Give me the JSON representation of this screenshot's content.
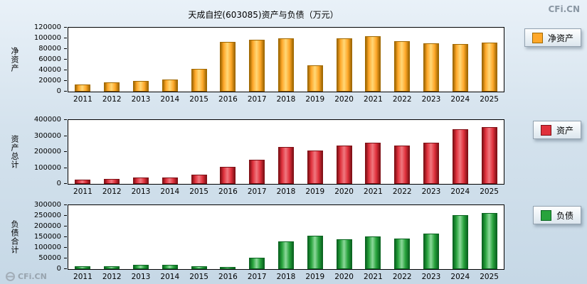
{
  "page": {
    "title": "天成自控(603085)资产与负债（万元）",
    "watermark_top": "CFi.CN",
    "watermark_bottom": "CFi.CN"
  },
  "chart_data": [
    {
      "type": "bar",
      "ylabel": "净资产",
      "legend": "净资产",
      "color": "#FFA82A",
      "color_light": "#FFD878",
      "color_dark": "#A06800",
      "ylim": [
        0,
        120000
      ],
      "yticks": [
        0,
        20000,
        40000,
        60000,
        80000,
        100000,
        120000
      ],
      "categories": [
        "2011",
        "2012",
        "2013",
        "2014",
        "2015",
        "2016",
        "2017",
        "2018",
        "2019",
        "2020",
        "2021",
        "2022",
        "2023",
        "2024",
        "2025"
      ],
      "values": [
        13000,
        18000,
        19500,
        23000,
        43000,
        94000,
        98000,
        100000,
        50000,
        100000,
        104000,
        95000,
        91000,
        90000,
        92000
      ]
    },
    {
      "type": "bar",
      "ylabel": "资产总计",
      "legend": "资产",
      "color": "#E0313C",
      "color_light": "#F0787F",
      "color_dark": "#801016",
      "ylim": [
        0,
        400000
      ],
      "yticks": [
        0,
        100000,
        200000,
        300000,
        400000
      ],
      "categories": [
        "2011",
        "2012",
        "2013",
        "2014",
        "2015",
        "2016",
        "2017",
        "2018",
        "2019",
        "2020",
        "2021",
        "2022",
        "2023",
        "2024",
        "2025"
      ],
      "values": [
        28000,
        31000,
        38000,
        42000,
        57000,
        105000,
        151000,
        231000,
        208000,
        241000,
        257000,
        238000,
        258000,
        342000,
        356000
      ]
    },
    {
      "type": "bar",
      "ylabel": "负债合计",
      "legend": "负债",
      "color": "#28A33C",
      "color_light": "#8CD89A",
      "color_dark": "#0A6420",
      "ylim": [
        0,
        300000
      ],
      "yticks": [
        0,
        50000,
        100000,
        150000,
        200000,
        250000,
        300000
      ],
      "categories": [
        "2011",
        "2012",
        "2013",
        "2014",
        "2015",
        "2016",
        "2017",
        "2018",
        "2019",
        "2020",
        "2021",
        "2022",
        "2023",
        "2024",
        "2025"
      ],
      "values": [
        15000,
        13000,
        18500,
        19000,
        14000,
        11000,
        53000,
        131000,
        158000,
        141000,
        153000,
        143000,
        167000,
        252000,
        264000
      ]
    }
  ]
}
